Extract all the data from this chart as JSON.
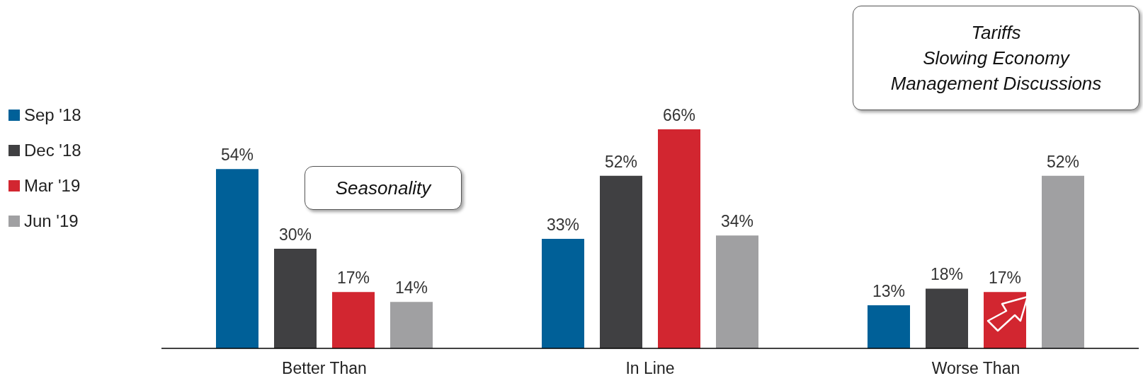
{
  "chart_data": {
    "type": "bar",
    "categories": [
      "Better Than",
      "In Line",
      "Worse Than"
    ],
    "series": [
      {
        "name": "Sep '18",
        "color": "#006098",
        "values": [
          54,
          33,
          13
        ],
        "value_labels": [
          "54%",
          "33%",
          "13%"
        ]
      },
      {
        "name": "Dec '18",
        "color": "#404042",
        "values": [
          30,
          52,
          18
        ],
        "value_labels": [
          "30%",
          "52%",
          "18%"
        ]
      },
      {
        "name": "Mar '19",
        "color": "#d22630",
        "values": [
          17,
          66,
          17
        ],
        "value_labels": [
          "17%",
          "66%",
          "17%"
        ]
      },
      {
        "name": "Jun '19",
        "color": "#a0a0a2",
        "values": [
          14,
          34,
          52
        ],
        "value_labels": [
          "14%",
          "34%",
          "52%"
        ]
      }
    ],
    "annotations": [
      "Seasonality",
      "Tariffs\nSlowing Economy\nManagement Discussions"
    ],
    "legend": "left",
    "grid": false
  }
}
